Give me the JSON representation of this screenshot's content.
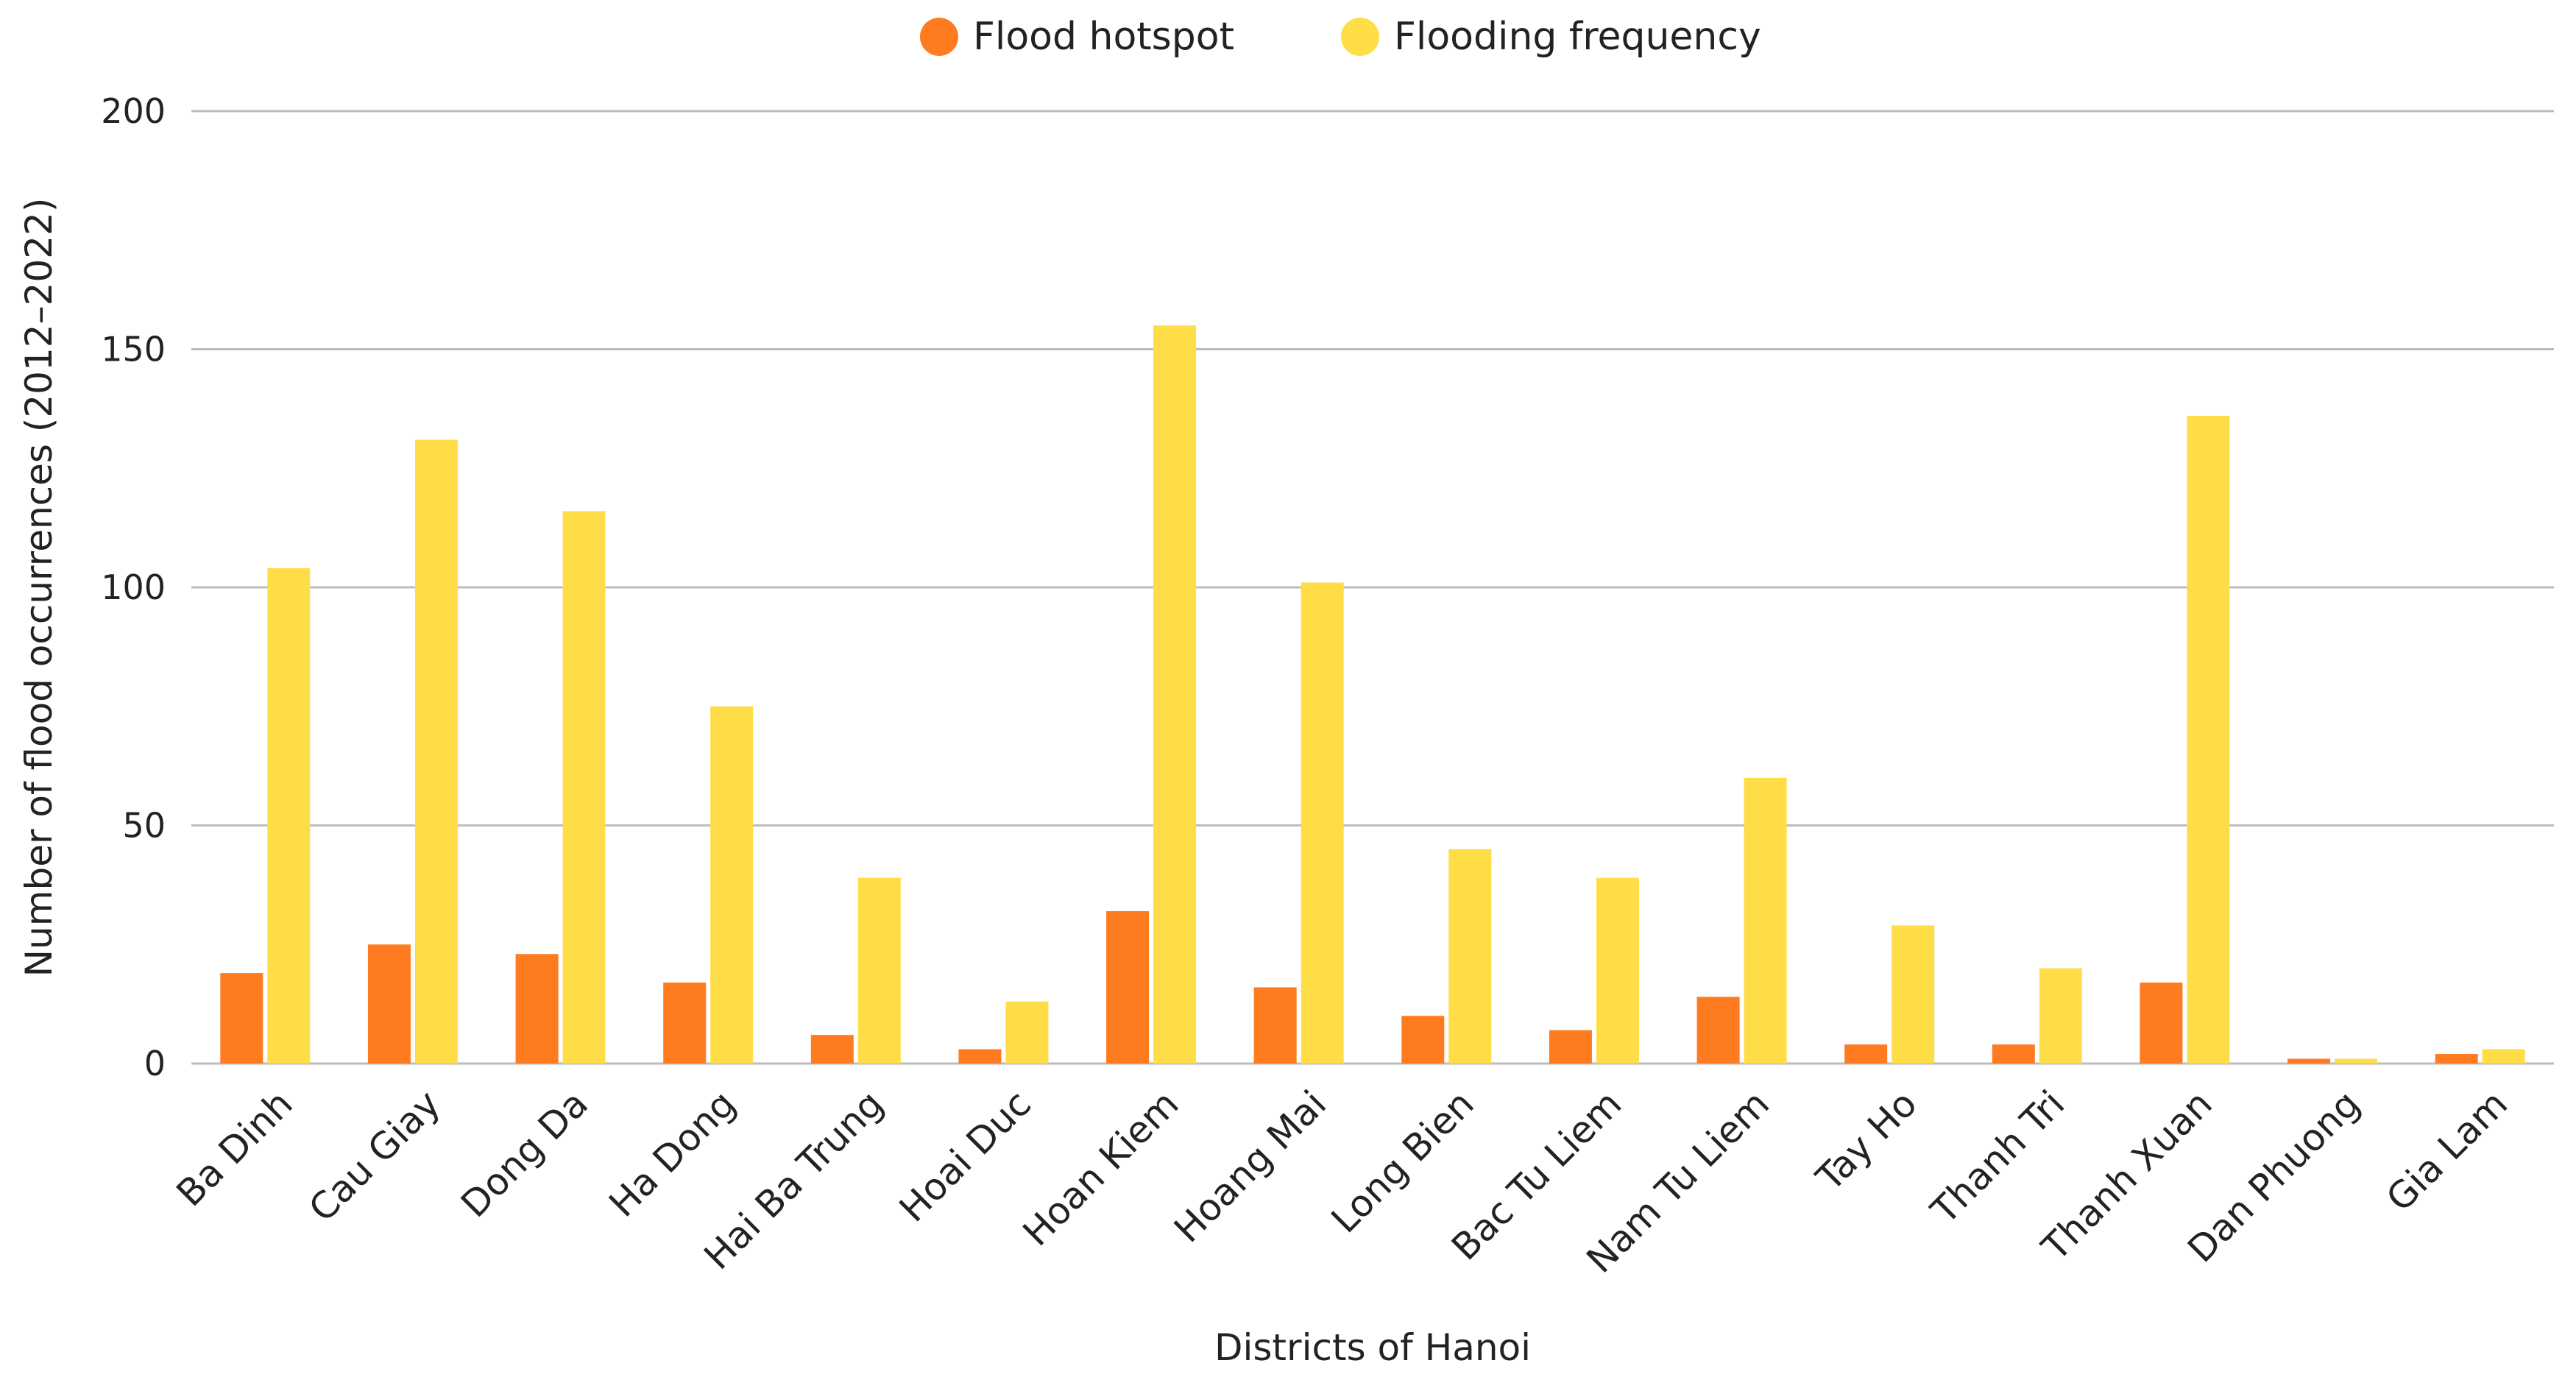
{
  "chart_data": {
    "type": "bar",
    "title": "",
    "xlabel": "Districts of Hanoi",
    "ylabel": "Number of flood occurrences (2012–2022)",
    "ylim": [
      0,
      200
    ],
    "yticks": [
      0,
      50,
      100,
      150,
      200
    ],
    "grid": true,
    "legend_position": "top-center",
    "categories": [
      "Ba Dinh",
      "Cau Giay",
      "Dong Da",
      "Ha Dong",
      "Hai Ba Trung",
      "Hoai Duc",
      "Hoan Kiem",
      "Hoang Mai",
      "Long Bien",
      "Bac Tu Liem",
      "Nam Tu Liem",
      "Tay Ho",
      "Thanh Tri",
      "Thanh Xuan",
      "Dan Phuong",
      "Gia Lam"
    ],
    "series": [
      {
        "name": "Flood hotspot",
        "color": "#FF7B1F",
        "values": [
          19,
          25,
          23,
          17,
          6,
          3,
          32,
          16,
          10,
          7,
          14,
          4,
          4,
          17,
          1,
          2
        ]
      },
      {
        "name": "Flooding frequency",
        "color": "#FFDD47",
        "values": [
          104,
          131,
          116,
          75,
          39,
          13,
          155,
          101,
          45,
          39,
          60,
          29,
          20,
          136,
          1,
          3
        ]
      }
    ]
  }
}
